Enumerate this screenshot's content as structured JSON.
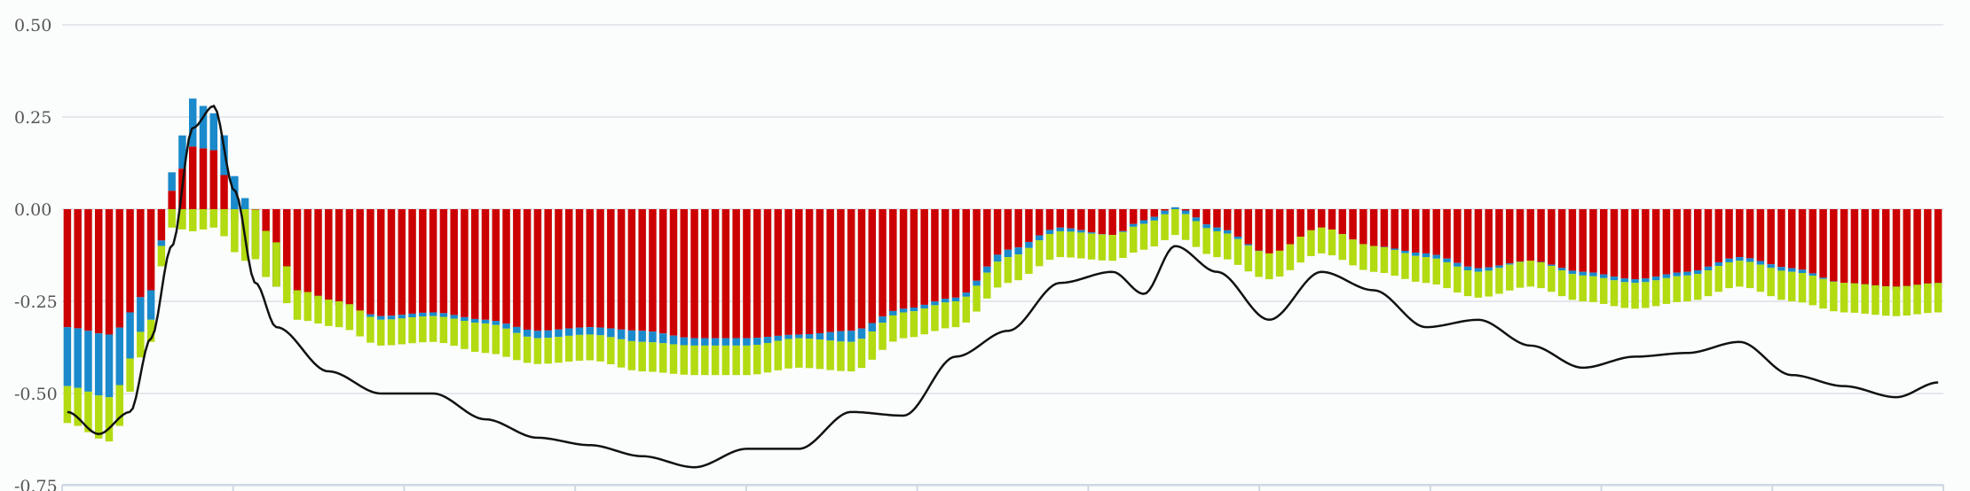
{
  "chart_data": {
    "type": "bar",
    "stacked": true,
    "grid": true,
    "legend": "none",
    "ylim": [
      -0.75,
      0.5
    ],
    "yticks": [
      "0.50",
      "0.25",
      "0.00",
      "-0.25",
      "-0.50",
      "-0.75"
    ],
    "ytick_values": [
      0.5,
      0.25,
      0.0,
      -0.25,
      -0.5,
      -0.75
    ],
    "bar_count": 180,
    "colors": {
      "red": "#cc0000",
      "blue": "#1a8acc",
      "green": "#b2db11",
      "line": "#111111",
      "grid": "#dde1e6"
    },
    "anchors": {
      "x": [
        0,
        4,
        8,
        10,
        12,
        14,
        17,
        20,
        22,
        26,
        30,
        35,
        40,
        45,
        50,
        55,
        60,
        65,
        70,
        75,
        80,
        85,
        90,
        95,
        100,
        103,
        106,
        110,
        115,
        120,
        125,
        130,
        135,
        140,
        145,
        150,
        155,
        160,
        165,
        170,
        175,
        179
      ],
      "red": [
        -0.32,
        -0.34,
        -0.22,
        0.05,
        0.17,
        0.16,
        -0.1,
        -0.21,
        -0.23,
        -0.26,
        -0.29,
        -0.28,
        -0.3,
        -0.33,
        -0.32,
        -0.33,
        -0.35,
        -0.35,
        -0.34,
        -0.33,
        -0.27,
        -0.24,
        -0.11,
        -0.05,
        -0.07,
        -0.03,
        0.005,
        -0.05,
        -0.12,
        -0.05,
        -0.1,
        -0.12,
        -0.16,
        -0.14,
        -0.17,
        -0.19,
        -0.17,
        -0.13,
        -0.16,
        -0.2,
        -0.22,
        -0.21
      ],
      "blue": [
        -0.48,
        -0.51,
        -0.3,
        0.1,
        0.3,
        0.26,
        0.03,
        -0.09,
        -0.22,
        -0.25,
        -0.3,
        -0.29,
        -0.31,
        -0.35,
        -0.34,
        -0.36,
        -0.37,
        -0.37,
        -0.35,
        -0.36,
        -0.28,
        -0.25,
        -0.13,
        -0.06,
        -0.07,
        -0.04,
        -0.005,
        -0.06,
        -0.12,
        -0.05,
        -0.1,
        -0.13,
        -0.17,
        -0.14,
        -0.18,
        -0.2,
        -0.18,
        -0.14,
        -0.17,
        -0.2,
        -0.21,
        -0.2
      ],
      "green": [
        -0.1,
        -0.12,
        -0.06,
        -0.05,
        -0.06,
        -0.05,
        -0.14,
        -0.12,
        -0.08,
        -0.07,
        -0.07,
        -0.07,
        -0.08,
        -0.07,
        -0.07,
        -0.08,
        -0.08,
        -0.08,
        -0.08,
        -0.08,
        -0.07,
        -0.07,
        -0.07,
        -0.07,
        -0.07,
        -0.07,
        -0.07,
        -0.07,
        -0.07,
        -0.07,
        -0.07,
        -0.07,
        -0.07,
        -0.07,
        -0.07,
        -0.07,
        -0.07,
        -0.07,
        -0.08,
        -0.08,
        -0.08,
        -0.08
      ]
    },
    "line_anchors": {
      "x": [
        0,
        3,
        6,
        8,
        10,
        12,
        14,
        16,
        18,
        20,
        25,
        30,
        35,
        40,
        45,
        50,
        55,
        60,
        65,
        70,
        75,
        80,
        85,
        90,
        95,
        100,
        103,
        106,
        110,
        115,
        120,
        125,
        130,
        135,
        140,
        145,
        150,
        155,
        160,
        165,
        170,
        175,
        179
      ],
      "y": [
        -0.55,
        -0.61,
        -0.55,
        -0.35,
        -0.1,
        0.22,
        0.28,
        0.05,
        -0.2,
        -0.32,
        -0.44,
        -0.5,
        -0.5,
        -0.57,
        -0.62,
        -0.64,
        -0.67,
        -0.7,
        -0.65,
        -0.65,
        -0.55,
        -0.56,
        -0.4,
        -0.33,
        -0.2,
        -0.17,
        -0.23,
        -0.1,
        -0.17,
        -0.3,
        -0.17,
        -0.22,
        -0.32,
        -0.3,
        -0.37,
        -0.43,
        -0.4,
        -0.39,
        -0.36,
        -0.45,
        -0.48,
        -0.51,
        -0.47
      ]
    }
  }
}
